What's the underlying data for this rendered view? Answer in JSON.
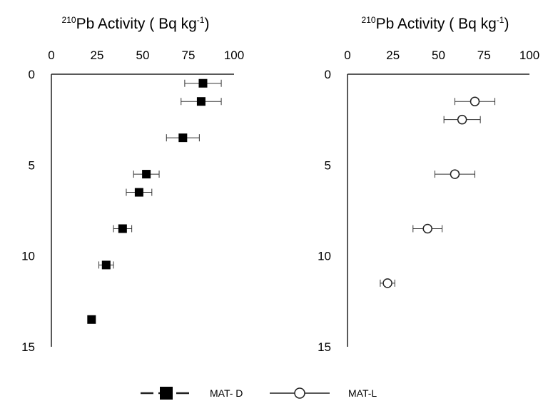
{
  "chart_data": [
    {
      "type": "scatter",
      "title_sup": "210",
      "title_main": "Pb Activity ( Bq kg",
      "title_unit_sup": "-1",
      "title_close": ")",
      "x_ticks": [
        "0",
        "25",
        "50",
        "75",
        "100"
      ],
      "y_ticks": [
        "0",
        "5",
        "10",
        "15"
      ],
      "xlim": [
        0,
        100
      ],
      "ylim": [
        0,
        15
      ],
      "y_reversed": true,
      "x_axis_position": "top",
      "grid": false,
      "series": [
        {
          "name": "MAT- D",
          "marker": "filled-square",
          "points": [
            {
              "depth": 0.5,
              "activity": 83,
              "err": 10
            },
            {
              "depth": 1.5,
              "activity": 82,
              "err": 11
            },
            {
              "depth": 3.5,
              "activity": 72,
              "err": 9
            },
            {
              "depth": 5.5,
              "activity": 52,
              "err": 7
            },
            {
              "depth": 6.5,
              "activity": 48,
              "err": 7
            },
            {
              "depth": 8.5,
              "activity": 39,
              "err": 5
            },
            {
              "depth": 10.5,
              "activity": 30,
              "err": 4
            },
            {
              "depth": 13.5,
              "activity": 22,
              "err": 2
            }
          ]
        }
      ]
    },
    {
      "type": "scatter",
      "title_sup": "210",
      "title_main": "Pb Activity ( Bq kg",
      "title_unit_sup": "-1",
      "title_close": ")",
      "x_ticks": [
        "0",
        "25",
        "50",
        "75",
        "100"
      ],
      "y_ticks": [
        "0",
        "5",
        "10",
        "15"
      ],
      "xlim": [
        0,
        100
      ],
      "ylim": [
        0,
        15
      ],
      "y_reversed": true,
      "x_axis_position": "top",
      "grid": false,
      "series": [
        {
          "name": "MAT-L",
          "marker": "open-circle",
          "points": [
            {
              "depth": 1.5,
              "activity": 70,
              "err": 11
            },
            {
              "depth": 2.5,
              "activity": 63,
              "err": 10
            },
            {
              "depth": 5.5,
              "activity": 59,
              "err": 11
            },
            {
              "depth": 8.5,
              "activity": 44,
              "err": 8
            },
            {
              "depth": 11.5,
              "activity": 22,
              "err": 4
            }
          ]
        }
      ]
    }
  ],
  "legend": {
    "placement": "bottom-center",
    "items": [
      {
        "label": "MAT- D"
      },
      {
        "label": "MAT-L"
      }
    ]
  }
}
